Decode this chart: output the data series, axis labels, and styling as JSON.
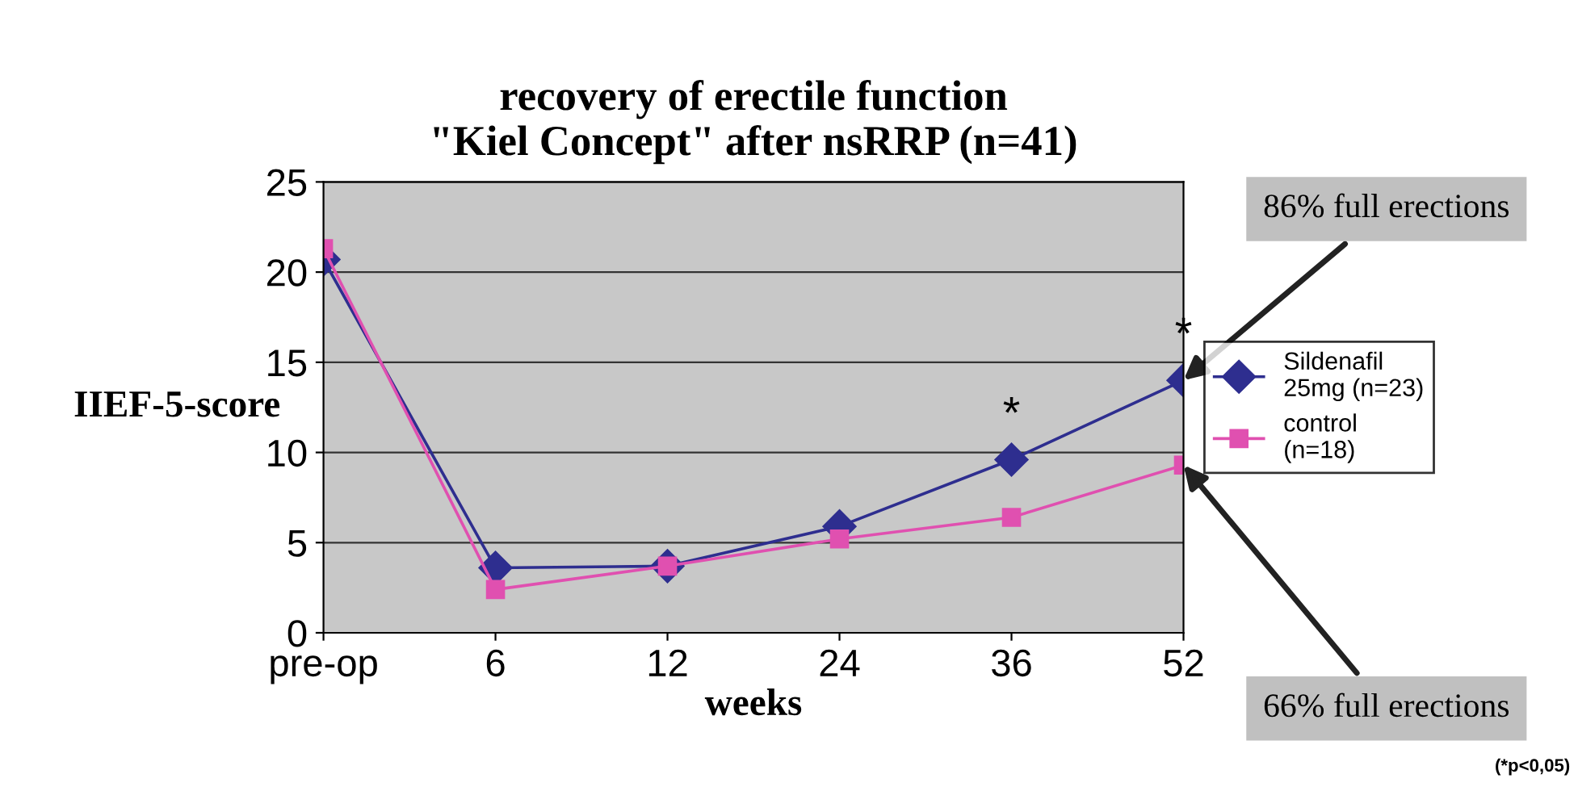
{
  "chart_data": {
    "type": "line",
    "title": "recovery of erectile function\n\"Kiel Concept\" after nsRRP (n=41)",
    "xlabel": "weeks",
    "ylabel": "IIEF-5-score",
    "categories": [
      "pre-op",
      "6",
      "12",
      "24",
      "36",
      "52"
    ],
    "series": [
      {
        "name": "Sildenafil\n25mg (n=23)",
        "color": "#2e2e8f",
        "marker": "diamond",
        "values": [
          20.7,
          3.6,
          3.7,
          5.9,
          9.6,
          14.0
        ]
      },
      {
        "name": "control\n(n=18)",
        "color": "#e050b0",
        "marker": "square",
        "values": [
          21.3,
          2.4,
          3.7,
          5.2,
          6.4,
          9.3
        ]
      }
    ],
    "ylim": [
      0,
      25
    ],
    "yticks": [
      0,
      5,
      10,
      15,
      20,
      25
    ],
    "grid": "y",
    "legend": "right",
    "line_style": "solid",
    "annotations": [
      {
        "text": "*",
        "x": "36",
        "y": 9.6
      },
      {
        "text": "*",
        "x": "52",
        "y": 14.0
      },
      {
        "text": "86% full erections",
        "x": "52",
        "y": 14.0
      },
      {
        "text": "66% full erections",
        "x": "52",
        "y": 9.3
      },
      "(*p<0,05)"
    ]
  }
}
